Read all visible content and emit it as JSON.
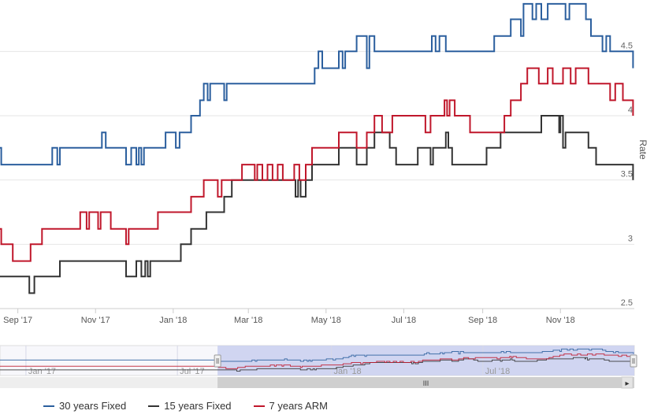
{
  "chart_data": {
    "type": "line",
    "xlabel": "",
    "ylabel": "Rate",
    "ylim": [
      2.5,
      4.9
    ],
    "yticks": [
      2.5,
      3,
      3.5,
      4,
      4.5
    ],
    "x_range": [
      "2017-08-18",
      "2018-12-29"
    ],
    "xticks": [
      {
        "date": "2017-09-01",
        "label": "Sep '17"
      },
      {
        "date": "2017-11-01",
        "label": "Nov '17"
      },
      {
        "date": "2018-01-01",
        "label": "Jan '18"
      },
      {
        "date": "2018-03-01",
        "label": "Mar '18"
      },
      {
        "date": "2018-05-01",
        "label": "May '18"
      },
      {
        "date": "2018-07-01",
        "label": "Jul '18"
      },
      {
        "date": "2018-09-01",
        "label": "Sep '18"
      },
      {
        "date": "2018-11-01",
        "label": "Nov '18"
      }
    ],
    "grid": true,
    "legend_position": "bottom",
    "series": [
      {
        "name": "30 years Fixed",
        "color": "#2b5f9e",
        "points": [
          [
            "2017-08-18",
            3.75
          ],
          [
            "2017-08-19",
            3.62
          ],
          [
            "2017-09-27",
            3.62
          ],
          [
            "2017-09-28",
            3.75
          ],
          [
            "2017-10-02",
            3.62
          ],
          [
            "2017-10-04",
            3.75
          ],
          [
            "2017-11-05",
            3.75
          ],
          [
            "2017-11-06",
            3.87
          ],
          [
            "2017-11-09",
            3.75
          ],
          [
            "2017-11-24",
            3.75
          ],
          [
            "2017-11-25",
            3.62
          ],
          [
            "2017-11-29",
            3.75
          ],
          [
            "2017-12-03",
            3.62
          ],
          [
            "2017-12-05",
            3.75
          ],
          [
            "2017-12-07",
            3.62
          ],
          [
            "2017-12-09",
            3.75
          ],
          [
            "2017-12-25",
            3.75
          ],
          [
            "2017-12-26",
            3.87
          ],
          [
            "2018-01-03",
            3.75
          ],
          [
            "2018-01-06",
            3.87
          ],
          [
            "2018-01-14",
            3.87
          ],
          [
            "2018-01-15",
            4.0
          ],
          [
            "2018-01-22",
            4.12
          ],
          [
            "2018-01-25",
            4.25
          ],
          [
            "2018-01-28",
            4.12
          ],
          [
            "2018-01-30",
            4.25
          ],
          [
            "2018-02-10",
            4.12
          ],
          [
            "2018-02-12",
            4.25
          ],
          [
            "2018-04-21",
            4.25
          ],
          [
            "2018-04-22",
            4.37
          ],
          [
            "2018-04-25",
            4.5
          ],
          [
            "2018-04-28",
            4.37
          ],
          [
            "2018-05-10",
            4.37
          ],
          [
            "2018-05-11",
            4.5
          ],
          [
            "2018-05-14",
            4.37
          ],
          [
            "2018-05-16",
            4.5
          ],
          [
            "2018-05-24",
            4.5
          ],
          [
            "2018-05-25",
            4.62
          ],
          [
            "2018-06-02",
            4.37
          ],
          [
            "2018-06-04",
            4.62
          ],
          [
            "2018-06-08",
            4.5
          ],
          [
            "2018-07-22",
            4.5
          ],
          [
            "2018-07-23",
            4.62
          ],
          [
            "2018-07-26",
            4.5
          ],
          [
            "2018-07-29",
            4.62
          ],
          [
            "2018-08-03",
            4.5
          ],
          [
            "2018-09-09",
            4.5
          ],
          [
            "2018-09-10",
            4.62
          ],
          [
            "2018-09-23",
            4.75
          ],
          [
            "2018-10-01",
            4.62
          ],
          [
            "2018-10-03",
            4.87
          ],
          [
            "2018-10-10",
            4.75
          ],
          [
            "2018-10-13",
            4.87
          ],
          [
            "2018-10-17",
            4.75
          ],
          [
            "2018-10-22",
            4.87
          ],
          [
            "2018-11-05",
            4.75
          ],
          [
            "2018-11-08",
            4.87
          ],
          [
            "2018-11-21",
            4.75
          ],
          [
            "2018-11-25",
            4.62
          ],
          [
            "2018-12-04",
            4.5
          ],
          [
            "2018-12-07",
            4.62
          ],
          [
            "2018-12-10",
            4.5
          ],
          [
            "2018-12-28",
            4.37
          ]
        ]
      },
      {
        "name": "15 years Fixed",
        "color": "#333333",
        "points": [
          [
            "2017-08-18",
            2.75
          ],
          [
            "2017-09-09",
            2.75
          ],
          [
            "2017-09-10",
            2.62
          ],
          [
            "2017-09-14",
            2.75
          ],
          [
            "2017-10-03",
            2.75
          ],
          [
            "2017-10-04",
            2.87
          ],
          [
            "2017-11-24",
            2.87
          ],
          [
            "2017-11-25",
            2.75
          ],
          [
            "2017-12-03",
            2.87
          ],
          [
            "2017-12-07",
            2.75
          ],
          [
            "2017-12-10",
            2.87
          ],
          [
            "2017-12-12",
            2.75
          ],
          [
            "2017-12-14",
            2.87
          ],
          [
            "2018-01-06",
            2.87
          ],
          [
            "2018-01-07",
            3.0
          ],
          [
            "2018-01-14",
            3.0
          ],
          [
            "2018-01-15",
            3.12
          ],
          [
            "2018-01-27",
            3.25
          ],
          [
            "2018-02-10",
            3.37
          ],
          [
            "2018-02-15",
            3.37
          ],
          [
            "2018-02-16",
            3.5
          ],
          [
            "2018-04-07",
            3.37
          ],
          [
            "2018-04-09",
            3.5
          ],
          [
            "2018-04-11",
            3.37
          ],
          [
            "2018-04-15",
            3.5
          ],
          [
            "2018-04-20",
            3.62
          ],
          [
            "2018-05-10",
            3.62
          ],
          [
            "2018-05-11",
            3.75
          ],
          [
            "2018-05-25",
            3.62
          ],
          [
            "2018-06-02",
            3.75
          ],
          [
            "2018-06-08",
            3.87
          ],
          [
            "2018-06-20",
            3.75
          ],
          [
            "2018-06-25",
            3.62
          ],
          [
            "2018-07-12",
            3.75
          ],
          [
            "2018-07-22",
            3.62
          ],
          [
            "2018-07-24",
            3.75
          ],
          [
            "2018-08-03",
            3.87
          ],
          [
            "2018-08-05",
            3.75
          ],
          [
            "2018-08-08",
            3.62
          ],
          [
            "2018-09-03",
            3.62
          ],
          [
            "2018-09-04",
            3.75
          ],
          [
            "2018-09-14",
            3.75
          ],
          [
            "2018-09-15",
            3.87
          ],
          [
            "2018-10-16",
            3.87
          ],
          [
            "2018-10-17",
            4.0
          ],
          [
            "2018-10-31",
            3.87
          ],
          [
            "2018-11-01",
            4.0
          ],
          [
            "2018-11-03",
            3.75
          ],
          [
            "2018-11-05",
            3.87
          ],
          [
            "2018-11-23",
            3.75
          ],
          [
            "2018-11-29",
            3.62
          ],
          [
            "2018-12-28",
            3.5
          ]
        ]
      },
      {
        "name": "7 years ARM",
        "color": "#c0172b",
        "points": [
          [
            "2017-08-18",
            3.12
          ],
          [
            "2017-08-19",
            3.0
          ],
          [
            "2017-08-27",
            3.0
          ],
          [
            "2017-08-28",
            2.87
          ],
          [
            "2017-09-11",
            3.0
          ],
          [
            "2017-09-19",
            3.0
          ],
          [
            "2017-09-20",
            3.12
          ],
          [
            "2017-10-20",
            3.25
          ],
          [
            "2017-10-25",
            3.12
          ],
          [
            "2017-10-27",
            3.25
          ],
          [
            "2017-11-03",
            3.12
          ],
          [
            "2017-11-05",
            3.25
          ],
          [
            "2017-11-13",
            3.12
          ],
          [
            "2017-11-24",
            3.12
          ],
          [
            "2017-11-25",
            3.0
          ],
          [
            "2017-11-27",
            3.12
          ],
          [
            "2017-12-19",
            3.12
          ],
          [
            "2017-12-20",
            3.25
          ],
          [
            "2018-01-14",
            3.25
          ],
          [
            "2018-01-15",
            3.37
          ],
          [
            "2018-01-25",
            3.5
          ],
          [
            "2018-02-05",
            3.37
          ],
          [
            "2018-02-08",
            3.5
          ],
          [
            "2018-02-23",
            3.5
          ],
          [
            "2018-02-24",
            3.62
          ],
          [
            "2018-03-06",
            3.5
          ],
          [
            "2018-03-08",
            3.62
          ],
          [
            "2018-03-12",
            3.5
          ],
          [
            "2018-03-16",
            3.62
          ],
          [
            "2018-03-20",
            3.5
          ],
          [
            "2018-03-24",
            3.62
          ],
          [
            "2018-03-28",
            3.5
          ],
          [
            "2018-04-06",
            3.62
          ],
          [
            "2018-04-10",
            3.5
          ],
          [
            "2018-04-15",
            3.62
          ],
          [
            "2018-04-20",
            3.75
          ],
          [
            "2018-05-10",
            3.75
          ],
          [
            "2018-05-11",
            3.87
          ],
          [
            "2018-05-25",
            3.75
          ],
          [
            "2018-06-02",
            3.87
          ],
          [
            "2018-06-08",
            4.0
          ],
          [
            "2018-06-14",
            3.87
          ],
          [
            "2018-06-22",
            4.0
          ],
          [
            "2018-07-18",
            3.87
          ],
          [
            "2018-07-22",
            4.0
          ],
          [
            "2018-08-02",
            4.12
          ],
          [
            "2018-08-04",
            4.0
          ],
          [
            "2018-08-06",
            4.12
          ],
          [
            "2018-08-10",
            4.0
          ],
          [
            "2018-08-22",
            3.87
          ],
          [
            "2018-09-18",
            4.0
          ],
          [
            "2018-09-23",
            4.12
          ],
          [
            "2018-10-01",
            4.25
          ],
          [
            "2018-10-06",
            4.37
          ],
          [
            "2018-10-15",
            4.25
          ],
          [
            "2018-10-22",
            4.37
          ],
          [
            "2018-10-26",
            4.25
          ],
          [
            "2018-11-03",
            4.37
          ],
          [
            "2018-11-09",
            4.25
          ],
          [
            "2018-11-13",
            4.37
          ],
          [
            "2018-11-23",
            4.25
          ],
          [
            "2018-12-10",
            4.12
          ],
          [
            "2018-12-14",
            4.25
          ],
          [
            "2018-12-20",
            4.12
          ],
          [
            "2018-12-28",
            4.0
          ]
        ]
      }
    ],
    "navigator": {
      "x_range": [
        "2016-12-01",
        "2018-12-29"
      ],
      "labels": [
        {
          "date": "2017-01-01",
          "label": "Jan '17"
        },
        {
          "date": "2017-07-01",
          "label": "Jul '17"
        },
        {
          "date": "2018-01-01",
          "label": "Jan '18"
        },
        {
          "date": "2018-07-01",
          "label": "Jul '18"
        }
      ],
      "selected_range": [
        "2017-08-18",
        "2018-12-29"
      ],
      "scrollbar_grip": "III",
      "scroll_arrow": "▸"
    }
  }
}
